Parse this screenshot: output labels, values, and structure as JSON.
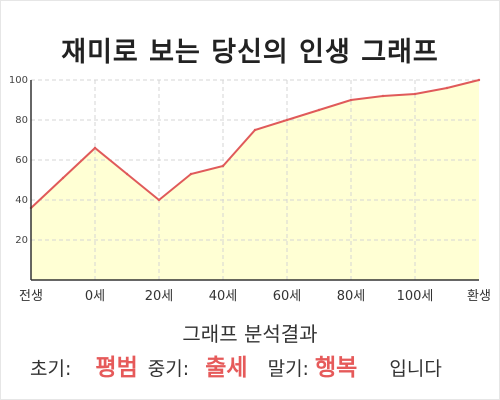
{
  "title": "재미로 보는 당신의 인생 그래프",
  "chart_data": {
    "type": "area",
    "title": "재미로 보는 당신의 인생 그래프",
    "xlabel": "",
    "ylabel": "",
    "categories": [
      "전생",
      "0세",
      "20세",
      "40세",
      "60세",
      "80세",
      "100세",
      "환생"
    ],
    "x": [
      0,
      1,
      2,
      3,
      4,
      5,
      6,
      7,
      8,
      9,
      10,
      11,
      12,
      13,
      14
    ],
    "values": [
      36,
      51,
      66,
      53,
      40,
      53,
      57,
      75,
      80,
      85,
      90,
      92,
      93,
      96,
      100
    ],
    "y_ticks": [
      20,
      40,
      60,
      80,
      100
    ],
    "ylim": [
      0,
      100
    ],
    "grid": true,
    "colors": {
      "line": "#e05a5a",
      "fill": "#ffffcc",
      "grid": "#d4d4d4"
    }
  },
  "analysis": {
    "heading": "그래프 분석결과",
    "early_label": "초기:",
    "early_value": "평범",
    "middle_label": "중기:",
    "middle_value": "출세",
    "late_label": "말기:",
    "late_value": "행복",
    "ending": "입니다"
  }
}
